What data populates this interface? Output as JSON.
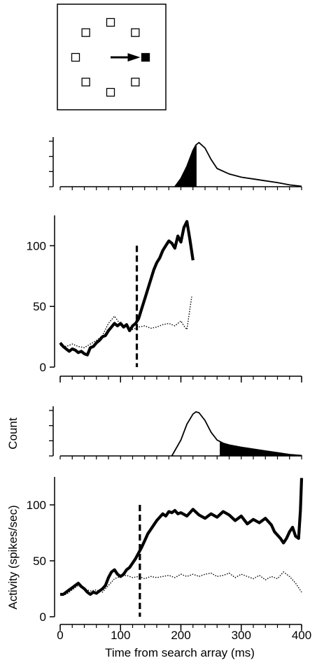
{
  "chart_data": [
    {
      "id": "search-array-diagram",
      "type": "diagram",
      "items": [
        {
          "kind": "distractor",
          "angle_deg": 90
        },
        {
          "kind": "distractor",
          "angle_deg": 45
        },
        {
          "kind": "distractor",
          "angle_deg": 135
        },
        {
          "kind": "distractor",
          "angle_deg": 180
        },
        {
          "kind": "distractor",
          "angle_deg": 225
        },
        {
          "kind": "distractor",
          "angle_deg": 270
        },
        {
          "kind": "distractor",
          "angle_deg": 315
        },
        {
          "kind": "target",
          "angle_deg": 0
        }
      ],
      "arrow": "center-to-target"
    },
    {
      "id": "rt-histogram-top",
      "type": "area",
      "xlim": [
        0,
        400
      ],
      "x": [
        190,
        200,
        210,
        220,
        225,
        230,
        240,
        250,
        260,
        280,
        300,
        320,
        340,
        360,
        380,
        400
      ],
      "y": [
        0,
        0.18,
        0.45,
        0.8,
        0.92,
        0.97,
        0.85,
        0.6,
        0.4,
        0.28,
        0.21,
        0.17,
        0.13,
        0.09,
        0.04,
        0.01
      ],
      "shaded_range": [
        190,
        225
      ]
    },
    {
      "id": "activity-top",
      "type": "line",
      "xlim": [
        0,
        400
      ],
      "ylim": [
        0,
        125
      ],
      "yticks": [
        0,
        50,
        100
      ],
      "xticks": [
        0,
        100,
        200,
        300,
        400
      ],
      "marker_x": 127,
      "series": [
        {
          "style": "solid",
          "x": [
            0,
            5,
            10,
            15,
            20,
            25,
            30,
            35,
            40,
            45,
            50,
            55,
            60,
            65,
            70,
            75,
            80,
            85,
            90,
            95,
            100,
            105,
            110,
            115,
            120,
            125,
            130,
            135,
            140,
            145,
            150,
            155,
            160,
            165,
            170,
            175,
            180,
            185,
            190,
            195,
            200,
            205,
            210,
            215,
            220
          ],
          "y": [
            20,
            17,
            15,
            13,
            15,
            14,
            12,
            13,
            11,
            10,
            16,
            17,
            20,
            22,
            25,
            26,
            30,
            33,
            36,
            34,
            36,
            33,
            35,
            30,
            34,
            36,
            40,
            48,
            56,
            64,
            72,
            80,
            86,
            90,
            96,
            100,
            104,
            102,
            98,
            108,
            103,
            115,
            120,
            105,
            88
          ]
        },
        {
          "style": "dotted",
          "x": [
            0,
            10,
            20,
            30,
            40,
            50,
            60,
            70,
            80,
            90,
            100,
            110,
            120,
            130,
            140,
            150,
            160,
            170,
            180,
            190,
            200,
            205,
            210,
            215,
            218
          ],
          "y": [
            18,
            17,
            19,
            17,
            16,
            19,
            22,
            26,
            36,
            42,
            35,
            33,
            31,
            33,
            34,
            32,
            33,
            35,
            36,
            34,
            38,
            34,
            31,
            48,
            58
          ]
        }
      ]
    },
    {
      "id": "rt-histogram-bottom",
      "type": "area",
      "ylabel": "Count",
      "xlim": [
        0,
        400
      ],
      "x": [
        185,
        200,
        210,
        220,
        225,
        230,
        240,
        250,
        260,
        270,
        280,
        300,
        320,
        340,
        360,
        380,
        400
      ],
      "y": [
        0,
        0.35,
        0.7,
        0.92,
        0.97,
        0.95,
        0.78,
        0.52,
        0.35,
        0.28,
        0.24,
        0.19,
        0.15,
        0.11,
        0.07,
        0.03,
        0.01
      ],
      "shaded_range": [
        265,
        400
      ]
    },
    {
      "id": "activity-bottom",
      "type": "line",
      "xlabel": "Time from search array (ms)",
      "ylabel": "Activity (spikes/sec)",
      "xlim": [
        0,
        400
      ],
      "ylim": [
        0,
        125
      ],
      "yticks": [
        0,
        50,
        100
      ],
      "xticks": [
        0,
        100,
        200,
        300,
        400
      ],
      "marker_x": 132,
      "series": [
        {
          "style": "solid",
          "x": [
            0,
            5,
            10,
            15,
            20,
            25,
            30,
            35,
            40,
            45,
            50,
            55,
            60,
            65,
            70,
            75,
            80,
            85,
            90,
            95,
            100,
            105,
            110,
            115,
            120,
            125,
            130,
            135,
            140,
            145,
            150,
            155,
            160,
            165,
            170,
            175,
            180,
            185,
            190,
            195,
            200,
            210,
            220,
            230,
            240,
            250,
            260,
            270,
            280,
            290,
            300,
            310,
            320,
            330,
            340,
            350,
            355,
            360,
            365,
            370,
            375,
            380,
            385,
            390,
            395,
            398,
            400
          ],
          "y": [
            20,
            20,
            22,
            24,
            26,
            28,
            30,
            27,
            25,
            22,
            20,
            22,
            21,
            23,
            25,
            28,
            35,
            40,
            42,
            38,
            36,
            38,
            42,
            44,
            48,
            52,
            57,
            62,
            68,
            74,
            78,
            82,
            86,
            89,
            92,
            90,
            94,
            93,
            95,
            92,
            93,
            90,
            96,
            91,
            88,
            92,
            89,
            94,
            91,
            86,
            90,
            83,
            87,
            84,
            88,
            82,
            76,
            73,
            70,
            66,
            70,
            76,
            80,
            72,
            70,
            95,
            124
          ]
        },
        {
          "style": "dotted",
          "x": [
            0,
            10,
            20,
            30,
            40,
            50,
            60,
            70,
            80,
            90,
            100,
            110,
            120,
            130,
            140,
            150,
            160,
            170,
            180,
            190,
            200,
            210,
            220,
            230,
            240,
            250,
            260,
            270,
            280,
            290,
            300,
            310,
            320,
            330,
            340,
            350,
            360,
            370,
            380,
            390,
            400
          ],
          "y": [
            20,
            20,
            24,
            28,
            25,
            23,
            24,
            22,
            28,
            34,
            36,
            37,
            35,
            36,
            34,
            36,
            35,
            36,
            37,
            35,
            38,
            36,
            38,
            36,
            38,
            39,
            36,
            37,
            39,
            35,
            38,
            36,
            34,
            37,
            33,
            36,
            34,
            40,
            36,
            30,
            22
          ]
        }
      ]
    }
  ]
}
